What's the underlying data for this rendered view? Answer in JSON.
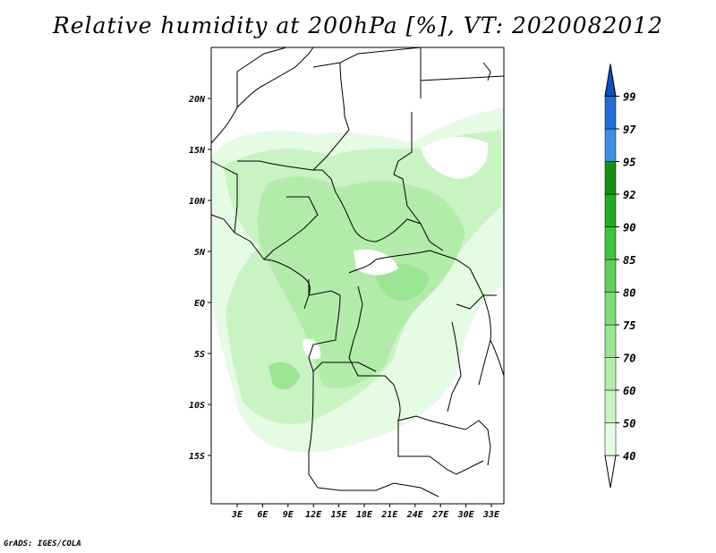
{
  "title": "Relative humidity at 200hPa [%], VT: 2020082012",
  "credit": "GrADS: IGES/COLA",
  "map": {
    "lon_range": [
      0,
      35
    ],
    "lat_range": [
      -20,
      25
    ],
    "lat_ticks": [
      "20N",
      "15N",
      "10N",
      "5N",
      "EQ",
      "5S",
      "10S",
      "15S"
    ],
    "lon_ticks": [
      "3E",
      "6E",
      "9E",
      "12E",
      "15E",
      "18E",
      "21E",
      "24E",
      "27E",
      "30E",
      "33E"
    ]
  },
  "colorbar": {
    "labels": [
      "40",
      "50",
      "60",
      "70",
      "75",
      "80",
      "85",
      "90",
      "92",
      "95",
      "97",
      "99"
    ],
    "colors": [
      "#ffffff",
      "#e6fbe3",
      "#c9f3c3",
      "#b2ebaa",
      "#9ce594",
      "#7fdc77",
      "#5fd059",
      "#3fc23c",
      "#23a923",
      "#139013",
      "#3d8fe6",
      "#1f6fd6",
      "#1250b8"
    ]
  }
}
